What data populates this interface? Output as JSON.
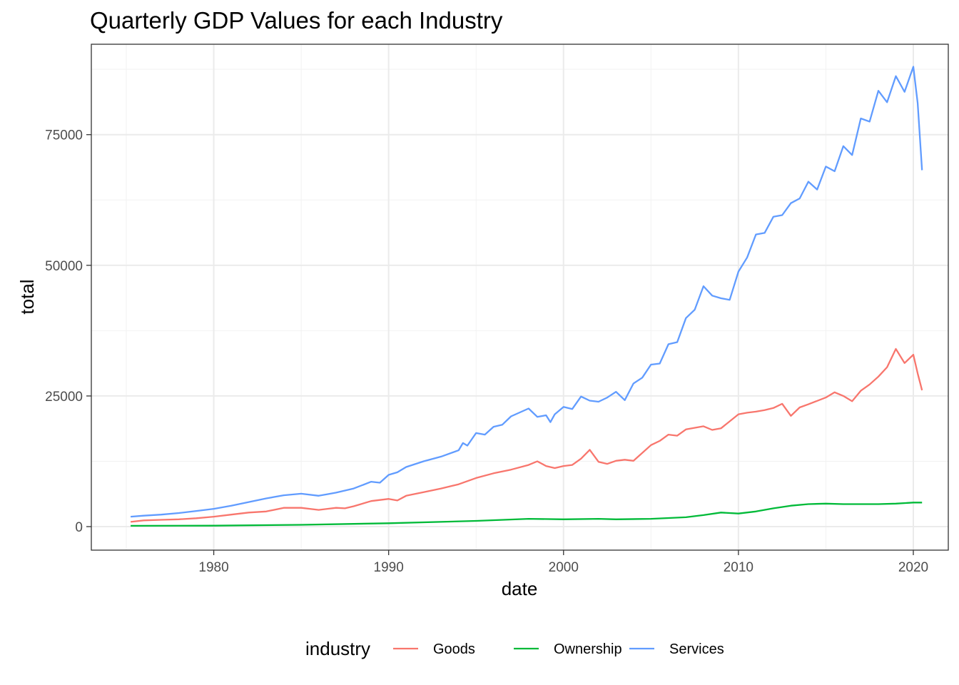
{
  "chart_data": {
    "type": "line",
    "title": "Quarterly GDP Values for each Industry",
    "xlabel": "date",
    "ylabel": "total",
    "x_ticks": [
      "1980",
      "1990",
      "2000",
      "2010",
      "2020"
    ],
    "y_ticks": [
      "0",
      "25000",
      "50000",
      "75000"
    ],
    "xlim": [
      1973,
      2022
    ],
    "ylim": [
      -4500,
      92300
    ],
    "grid": true,
    "legend": {
      "position": "bottom",
      "title": "industry"
    },
    "series": [
      {
        "name": "Goods",
        "color": "#F8766D",
        "x": [
          1975.25,
          1976,
          1977,
          1978,
          1979,
          1980,
          1981,
          1982,
          1983,
          1984,
          1985,
          1986,
          1986.5,
          1987,
          1987.5,
          1988,
          1989,
          1990,
          1990.5,
          1991,
          1992,
          1993,
          1994,
          1995,
          1996,
          1997,
          1998,
          1998.5,
          1999,
          1999.5,
          2000,
          2000.5,
          2001,
          2001.5,
          2002,
          2002.5,
          2003,
          2003.5,
          2004,
          2005,
          2005.5,
          2006,
          2006.5,
          2007,
          2008,
          2008.5,
          2009,
          2010,
          2010.5,
          2011,
          2011.5,
          2012,
          2012.5,
          2013,
          2013.5,
          2014,
          2015,
          2015.5,
          2016,
          2016.5,
          2017,
          2017.5,
          2018,
          2018.5,
          2019,
          2019.5,
          2020,
          2020.25,
          2020.5
        ],
        "values": [
          900,
          1200,
          1300,
          1400,
          1600,
          1900,
          2300,
          2700,
          2900,
          3600,
          3600,
          3200,
          3400,
          3600,
          3500,
          3900,
          4900,
          5300,
          5000,
          5900,
          6600,
          7300,
          8100,
          9300,
          10200,
          10900,
          11800,
          12500,
          11600,
          11200,
          11600,
          11800,
          13000,
          14700,
          12400,
          12000,
          12600,
          12800,
          12600,
          15600,
          16400,
          17600,
          17400,
          18600,
          19200,
          18500,
          18800,
          21500,
          21800,
          22000,
          22300,
          22700,
          23500,
          21200,
          22800,
          23400,
          24700,
          25700,
          25000,
          24000,
          26000,
          27200,
          28700,
          30500,
          34000,
          31300,
          32900,
          29300,
          26100
        ]
      },
      {
        "name": "Ownership",
        "color": "#00BA38",
        "x": [
          1975.25,
          1980,
          1985,
          1990,
          1995,
          1998,
          2000,
          2002,
          2003,
          2005,
          2007,
          2008,
          2009,
          2010,
          2011,
          2012,
          2013,
          2014,
          2015,
          2016,
          2017,
          2018,
          2019,
          2020,
          2020.5
        ],
        "values": [
          150,
          180,
          350,
          650,
          1100,
          1500,
          1400,
          1500,
          1400,
          1500,
          1800,
          2200,
          2700,
          2500,
          2900,
          3500,
          4000,
          4300,
          4400,
          4300,
          4300,
          4300,
          4400,
          4600,
          4600
        ]
      },
      {
        "name": "Services",
        "color": "#619CFF",
        "x": [
          1975.25,
          1976,
          1977,
          1978,
          1979,
          1980,
          1981,
          1982,
          1983,
          1984,
          1985,
          1986,
          1986.5,
          1987,
          1988,
          1989,
          1989.5,
          1990,
          1990.5,
          1991,
          1992,
          1993,
          1994,
          1994.25,
          1994.5,
          1995,
          1995.5,
          1996,
          1996.5,
          1997,
          1998,
          1998.5,
          1999,
          1999.25,
          1999.5,
          2000,
          2000.5,
          2001,
          2001.5,
          2002,
          2002.5,
          2003,
          2003.5,
          2004,
          2004.5,
          2005,
          2005.5,
          2006,
          2006.5,
          2007,
          2007.5,
          2008,
          2008.5,
          2009,
          2009.5,
          2010,
          2010.5,
          2011,
          2011.5,
          2012,
          2012.5,
          2013,
          2013.5,
          2014,
          2014.5,
          2015,
          2015.5,
          2016,
          2016.5,
          2017,
          2017.5,
          2018,
          2018.5,
          2019,
          2019.5,
          2020,
          2020.25,
          2020.5
        ],
        "values": [
          1900,
          2100,
          2300,
          2600,
          3000,
          3400,
          4000,
          4700,
          5400,
          6000,
          6300,
          5900,
          6200,
          6500,
          7300,
          8600,
          8400,
          9900,
          10400,
          11400,
          12500,
          13400,
          14600,
          16000,
          15500,
          17900,
          17600,
          19100,
          19500,
          21100,
          22600,
          21000,
          21300,
          20000,
          21500,
          22900,
          22500,
          24900,
          24100,
          23900,
          24700,
          25800,
          24200,
          27400,
          28500,
          31000,
          31200,
          34900,
          35300,
          39900,
          41500,
          46000,
          44200,
          43700,
          43400,
          48800,
          51500,
          55900,
          56200,
          59300,
          59600,
          61900,
          62800,
          66000,
          64500,
          68900,
          68000,
          72800,
          71100,
          78100,
          77500,
          83400,
          81200,
          86200,
          83200,
          88000,
          81000,
          68200
        ]
      }
    ]
  }
}
